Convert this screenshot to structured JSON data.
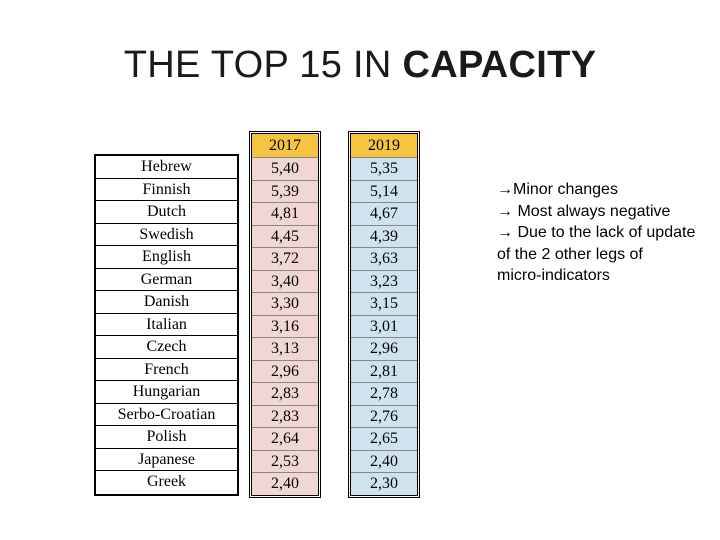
{
  "title": {
    "prefix": "THE TOP 15 IN ",
    "bold": "CAPACITY"
  },
  "table": {
    "headers": {
      "y2017": "2017",
      "y2019": "2019"
    },
    "rows": [
      {
        "language": "Hebrew",
        "v2017": "5,40",
        "v2019": "5,35"
      },
      {
        "language": "Finnish",
        "v2017": "5,39",
        "v2019": "5,14"
      },
      {
        "language": "Dutch",
        "v2017": "4,81",
        "v2019": "4,67"
      },
      {
        "language": "Swedish",
        "v2017": "4,45",
        "v2019": "4,39"
      },
      {
        "language": "English",
        "v2017": "3,72",
        "v2019": "3,63"
      },
      {
        "language": "German",
        "v2017": "3,40",
        "v2019": "3,23"
      },
      {
        "language": "Danish",
        "v2017": "3,30",
        "v2019": "3,15"
      },
      {
        "language": "Italian",
        "v2017": "3,16",
        "v2019": "3,01"
      },
      {
        "language": "Czech",
        "v2017": "3,13",
        "v2019": "2,96"
      },
      {
        "language": "French",
        "v2017": "2,96",
        "v2019": "2,81"
      },
      {
        "language": "Hungarian",
        "v2017": "2,83",
        "v2019": "2,78"
      },
      {
        "language": "Serbo-Croatian",
        "v2017": "2,83",
        "v2019": "2,76"
      },
      {
        "language": "Polish",
        "v2017": "2,64",
        "v2019": "2,65"
      },
      {
        "language": "Japanese",
        "v2017": "2,53",
        "v2019": "2,40"
      },
      {
        "language": "Greek",
        "v2017": "2,40",
        "v2019": "2,30"
      }
    ]
  },
  "notes": [
    "→Minor changes",
    "→ Most always negative",
    "→ Due to the lack of update",
    "of the 2 other legs of",
    "micro-indicators"
  ],
  "colors": {
    "header_fill": "#f5c542",
    "col2017_fill": "#f0d7d3",
    "col2019_fill": "#cfe3ee"
  }
}
